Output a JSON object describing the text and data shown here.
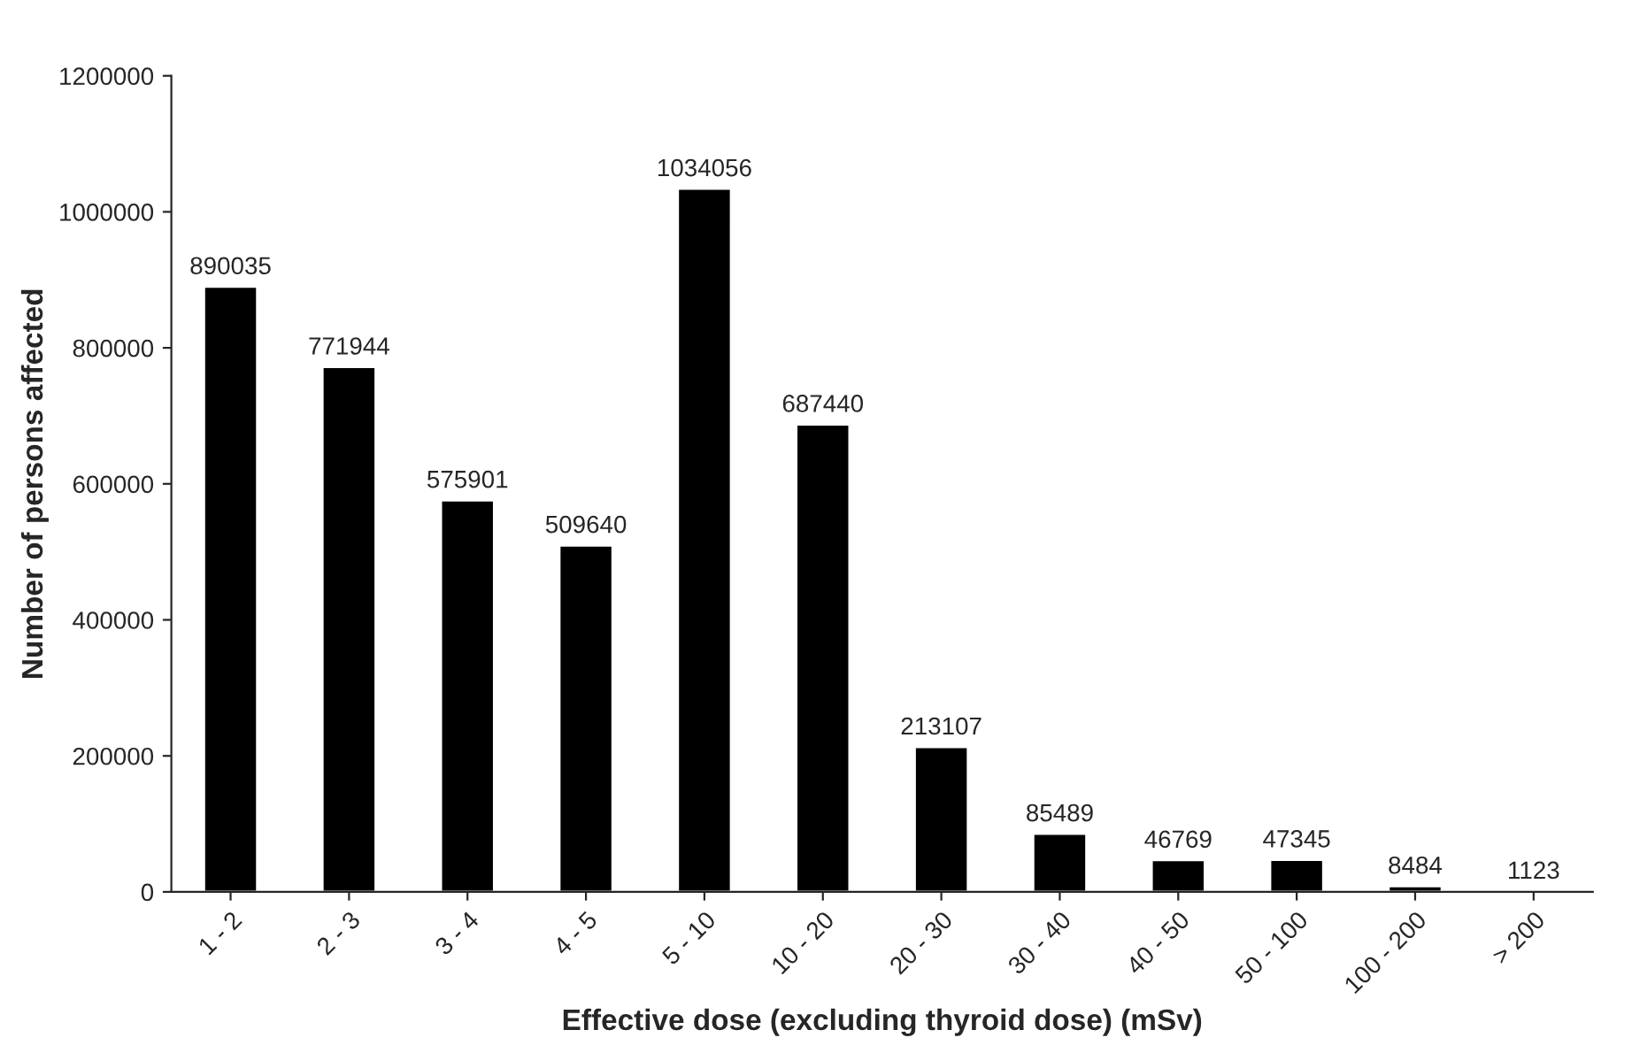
{
  "chart_data": {
    "type": "bar",
    "xlabel": "Effective dose (excluding thyroid dose) (mSv)",
    "ylabel": "Number of persons affected",
    "categories": [
      "1 - 2",
      "2 - 3",
      "3 - 4",
      "4 - 5",
      "5 - 10",
      "10 - 20",
      "20 - 30",
      "30 - 40",
      "40 - 50",
      "50 - 100",
      "100 - 200",
      "> 200"
    ],
    "values": [
      890035,
      771944,
      575901,
      509640,
      1034056,
      687440,
      213107,
      85489,
      46769,
      47345,
      8484,
      1123
    ],
    "color": "#000000",
    "ylim": [
      0,
      1200000
    ],
    "yticks": [
      0,
      200000,
      400000,
      600000,
      800000,
      1000000,
      1200000
    ],
    "data_labels": true,
    "grid": false,
    "legend": false
  }
}
